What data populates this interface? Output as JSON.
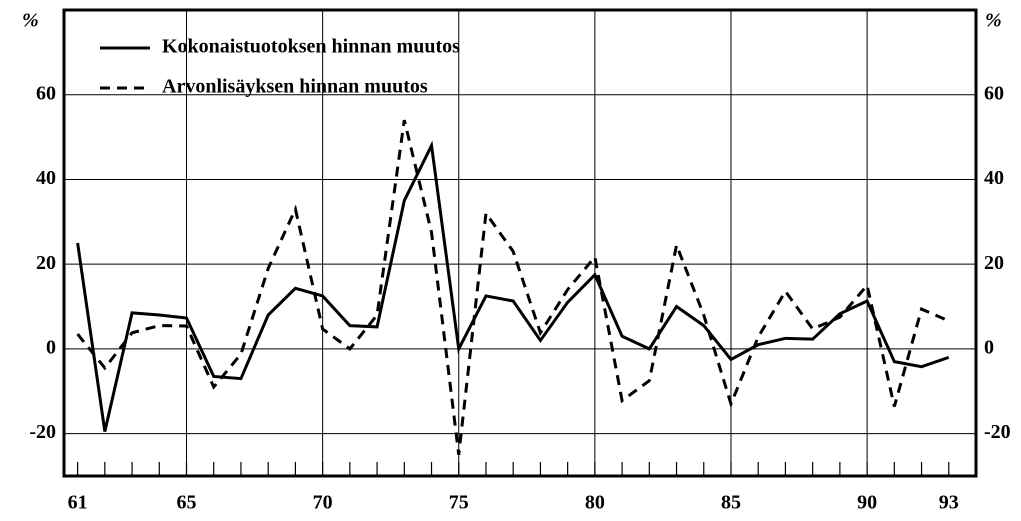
{
  "chart_data": {
    "type": "line",
    "ylabel": "%",
    "y2label": "%",
    "x": [
      61,
      62,
      63,
      64,
      65,
      66,
      67,
      68,
      69,
      70,
      71,
      72,
      73,
      74,
      75,
      76,
      77,
      78,
      79,
      80,
      81,
      82,
      83,
      84,
      85,
      86,
      87,
      88,
      89,
      90,
      91,
      92,
      93
    ],
    "series": [
      {
        "name": "Kokonaistuotoksen hinnan muutos",
        "color": "#000000",
        "dash": false,
        "values": [
          25,
          -19.5,
          8.5,
          8,
          7.3,
          -6.5,
          -7,
          8,
          14.3,
          12.5,
          5.5,
          5.2,
          35,
          48,
          0,
          12.5,
          11.3,
          2,
          11,
          17.5,
          3,
          0,
          10,
          5.5,
          -2.5,
          1,
          2.5,
          2.3,
          8.3,
          11.3,
          -3,
          -4.2,
          -2
        ]
      },
      {
        "name": "Arvonlisäyksen hinnan muutos",
        "color": "#000000",
        "dash": true,
        "values": [
          3.5,
          -4.5,
          3.8,
          5.5,
          5.4,
          -9,
          -1.2,
          19,
          33,
          4.7,
          0,
          8,
          54,
          27.5,
          -25,
          32,
          23,
          3.8,
          14,
          21.7,
          -12.2,
          -7.5,
          24.5,
          8,
          -13,
          2.8,
          13.6,
          4.7,
          7.5,
          15,
          -13.6,
          9.4,
          6.6
        ]
      }
    ],
    "xlim": [
      60.5,
      94
    ],
    "xticks": [
      61,
      65,
      70,
      75,
      80,
      85,
      90,
      93
    ],
    "ylim": [
      -30,
      80
    ],
    "yticks": [
      -20,
      0,
      20,
      40,
      60
    ],
    "y2lim": [
      -30,
      80
    ],
    "y2ticks": [
      -20,
      0,
      20,
      40,
      60
    ],
    "grid": true,
    "legend": "upper left"
  }
}
